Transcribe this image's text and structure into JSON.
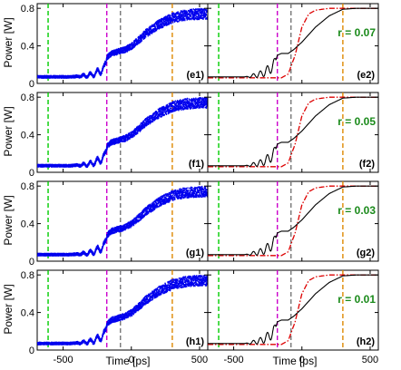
{
  "chart_data": {
    "type": "line",
    "xlabel": "Time [ps]",
    "ylabel": "Power [W]",
    "xlim": [
      -690,
      560
    ],
    "ylim": [
      0,
      0.85
    ],
    "xticks": [
      "-500",
      "0",
      "500"
    ],
    "xtick_values": [
      -500,
      0,
      500
    ],
    "yticks": [
      "0",
      "0.4",
      "0.8"
    ],
    "ytick_values": [
      0,
      0.4,
      0.8
    ],
    "grid": false,
    "colors": {
      "experiment": "#0000ee",
      "simulation": "#000000",
      "reference": "#dd0000",
      "marker_green": "#00cc00",
      "marker_magenta": "#cc00cc",
      "marker_gray": "#777777",
      "marker_orange": "#dd8800",
      "r_label": "#1a8a1a"
    },
    "vertical_markers": [
      {
        "x": -610,
        "color": "marker_green"
      },
      {
        "x": -180,
        "color": "marker_magenta"
      },
      {
        "x": -80,
        "color": "marker_gray"
      },
      {
        "x": 300,
        "color": "marker_orange"
      }
    ],
    "panels": [
      {
        "label": "(e1)",
        "kind": "experiment",
        "row": 0,
        "col": 0
      },
      {
        "label": "(e2)",
        "kind": "simulation",
        "row": 0,
        "col": 1,
        "r": "r = 0.07"
      },
      {
        "label": "(f1)",
        "kind": "experiment",
        "row": 1,
        "col": 0
      },
      {
        "label": "(f2)",
        "kind": "simulation",
        "row": 1,
        "col": 1,
        "r": "r = 0.05"
      },
      {
        "label": "(g1)",
        "kind": "experiment",
        "row": 2,
        "col": 0
      },
      {
        "label": "(g2)",
        "kind": "simulation",
        "row": 2,
        "col": 1,
        "r": "r = 0.03"
      },
      {
        "label": "(h1)",
        "kind": "experiment",
        "row": 3,
        "col": 0
      },
      {
        "label": "(h2)",
        "kind": "simulation",
        "row": 3,
        "col": 1,
        "r": "r = 0.01"
      }
    ],
    "series": [
      {
        "kind": "experiment",
        "x": [
          -690,
          -450,
          -350,
          -300,
          -250,
          -200,
          -180,
          -150,
          -100,
          -50,
          0,
          50,
          100,
          200,
          300,
          400,
          500,
          560
        ],
        "y": [
          0.07,
          0.07,
          0.08,
          0.09,
          0.12,
          0.16,
          0.28,
          0.32,
          0.34,
          0.36,
          0.4,
          0.46,
          0.53,
          0.63,
          0.7,
          0.73,
          0.74,
          0.74
        ]
      },
      {
        "kind": "simulation",
        "x": [
          -690,
          -400,
          -300,
          -250,
          -200,
          -180,
          -150,
          -100,
          -60,
          0,
          50,
          100,
          200,
          300,
          400,
          560
        ],
        "y": [
          0.07,
          0.07,
          0.1,
          0.14,
          0.2,
          0.3,
          0.32,
          0.32,
          0.36,
          0.44,
          0.52,
          0.6,
          0.72,
          0.79,
          0.8,
          0.8
        ]
      },
      {
        "kind": "reference",
        "x": [
          -690,
          -150,
          -100,
          -50,
          0,
          50,
          100,
          200,
          300,
          560
        ],
        "y": [
          0.06,
          0.06,
          0.1,
          0.3,
          0.6,
          0.74,
          0.78,
          0.8,
          0.8,
          0.8
        ]
      }
    ]
  }
}
